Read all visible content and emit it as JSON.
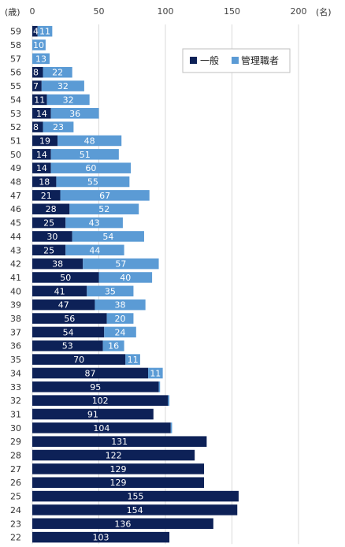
{
  "chart_data": {
    "type": "bar",
    "orientation": "horizontal",
    "stacked": true,
    "categories": [
      "59",
      "58",
      "57",
      "56",
      "55",
      "54",
      "53",
      "52",
      "51",
      "50",
      "49",
      "48",
      "47",
      "46",
      "45",
      "44",
      "43",
      "42",
      "41",
      "40",
      "39",
      "38",
      "37",
      "36",
      "35",
      "34",
      "33",
      "32",
      "31",
      "30",
      "29",
      "28",
      "27",
      "26",
      "25",
      "24",
      "23",
      "22"
    ],
    "series": [
      {
        "name": "一般",
        "color": "#0d2157",
        "values": [
          4,
          0,
          0,
          8,
          7,
          11,
          14,
          8,
          19,
          14,
          14,
          18,
          21,
          28,
          25,
          30,
          25,
          38,
          50,
          41,
          47,
          56,
          54,
          53,
          70,
          87,
          95,
          102,
          91,
          104,
          131,
          122,
          129,
          129,
          155,
          154,
          136,
          103
        ]
      },
      {
        "name": "管理職者",
        "color": "#5b9bd5",
        "values": [
          11,
          10,
          13,
          22,
          32,
          32,
          36,
          23,
          48,
          51,
          60,
          55,
          67,
          52,
          43,
          54,
          44,
          57,
          40,
          35,
          38,
          20,
          24,
          16,
          11,
          11,
          1,
          1,
          0,
          1,
          0,
          0,
          0,
          0,
          0,
          0,
          0,
          0
        ]
      }
    ],
    "xlim": [
      0,
      200
    ],
    "xticks": [
      0,
      50,
      100,
      150,
      200
    ],
    "y_unit": "(歳)",
    "x_unit": "(名)",
    "legend_position": "top-right",
    "grid": true
  }
}
